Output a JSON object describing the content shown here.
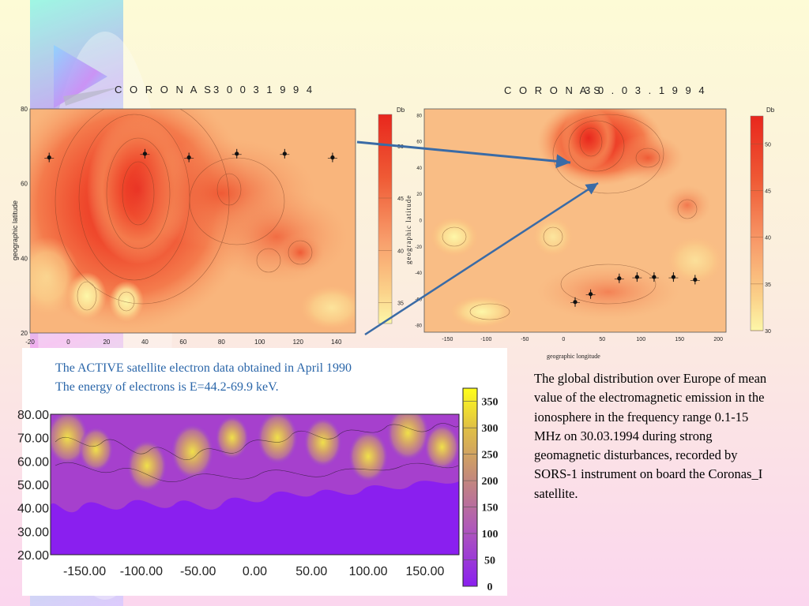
{
  "colors": {
    "map_dark_red": "#e8271d",
    "map_light_yellow": "#fdf7a8",
    "purple_low": "#8a1fef",
    "arrow_blue": "#3a6ba6",
    "caption_blue": "#2a66a9"
  },
  "left_map": {
    "title": "C O R O N A S",
    "date": "3 0  0 3  1 9 9 4",
    "ylabel": "geographic latitude",
    "yticks": [
      "80",
      "60",
      "40",
      "20"
    ],
    "xticks": [
      "-20",
      "0",
      "20",
      "40",
      "60",
      "80",
      "100",
      "120",
      "140"
    ],
    "colorbar_unit": "Db",
    "colorbar_ticks": [
      "50",
      "45",
      "40",
      "35"
    ]
  },
  "right_map": {
    "title": "C O R O N A S",
    "date": "3 0 . 0 3 . 1 9 9 4",
    "ylabel": "geographic latitude",
    "xlabel": "geographic longitude",
    "yticks": [
      "80",
      "60",
      "40",
      "20",
      "0",
      "-20",
      "-40",
      "-60",
      "-80"
    ],
    "xticks": [
      "-150",
      "-100",
      "-50",
      "0",
      "50",
      "100",
      "150",
      "200"
    ],
    "colorbar_unit": "Db",
    "colorbar_ticks": [
      "50",
      "45",
      "40",
      "35",
      "30"
    ]
  },
  "active_map": {
    "caption_line1": "The ACTIVE satellite electron data obtained in April 1990",
    "caption_line2": "The energy of electrons is E=44.2-69.9 keV.",
    "yticks": [
      "80.00",
      "70.00",
      "60.00",
      "50.00",
      "40.00",
      "30.00",
      "20.00"
    ],
    "xticks": [
      "-150.00",
      "-100.00",
      "-50.00",
      "0.00",
      "50.00",
      "100.00",
      "150.00"
    ],
    "colorbar_ticks": [
      "350",
      "300",
      "250",
      "200",
      "150",
      "100",
      "50",
      "0"
    ]
  },
  "description": "The global distribution over Europe of mean value of the electromagnetic emission in the ionosphere in the frequency range 0.1-15 MHz on 30.03.1994 during strong geomagnetic disturbances, recorded by SORS-1 instrument on board the Coronas_I satellite.",
  "chart_data": [
    {
      "type": "heatmap",
      "title": "C O R O N A S",
      "subtitle": "3 0  0 3  1 9 9 4",
      "xlabel": "",
      "ylabel": "geographic latitude",
      "xlim": [
        -20,
        150
      ],
      "ylim": [
        20,
        80
      ],
      "colorbar": {
        "unit": "Db",
        "range": [
          33,
          53
        ],
        "ticks": [
          50,
          45,
          40,
          35
        ]
      },
      "peak": {
        "x": 40,
        "y": 60,
        "value": 52
      },
      "marked_points": [
        {
          "x": -10,
          "y": 67
        },
        {
          "x": 40,
          "y": 68
        },
        {
          "x": 63,
          "y": 67
        },
        {
          "x": 88,
          "y": 68
        },
        {
          "x": 113,
          "y": 68
        },
        {
          "x": 138,
          "y": 67
        }
      ]
    },
    {
      "type": "heatmap",
      "title": "C O R O N A S",
      "subtitle": "3 0 . 0 3 . 1 9 9 4",
      "xlabel": "geographic longitude",
      "ylabel": "geographic latitude",
      "xlim": [
        -180,
        210
      ],
      "ylim": [
        -85,
        85
      ],
      "colorbar": {
        "unit": "Db",
        "range": [
          30,
          53
        ],
        "ticks": [
          50,
          45,
          40,
          35,
          30
        ]
      },
      "peak": {
        "x": 40,
        "y": 65,
        "value": 52
      },
      "marked_points": [
        {
          "x": 15,
          "y": -62
        },
        {
          "x": 35,
          "y": -56
        },
        {
          "x": 72,
          "y": -44
        },
        {
          "x": 95,
          "y": -43
        },
        {
          "x": 117,
          "y": -43
        },
        {
          "x": 142,
          "y": -43
        },
        {
          "x": 170,
          "y": -45
        }
      ]
    },
    {
      "type": "heatmap",
      "title": "",
      "xlabel": "",
      "ylabel": "",
      "xlim": [
        -180,
        180
      ],
      "ylim": [
        20,
        80
      ],
      "colorbar": {
        "range": [
          0,
          375
        ],
        "ticks": [
          350,
          300,
          250,
          200,
          150,
          100,
          50,
          0
        ]
      },
      "hotspots": [
        {
          "x": -165,
          "y": 70,
          "value": 320
        },
        {
          "x": -140,
          "y": 65,
          "value": 240
        },
        {
          "x": -95,
          "y": 58,
          "value": 300
        },
        {
          "x": -55,
          "y": 64,
          "value": 330
        },
        {
          "x": -20,
          "y": 70,
          "value": 230
        },
        {
          "x": 20,
          "y": 70,
          "value": 310
        },
        {
          "x": 60,
          "y": 68,
          "value": 280
        },
        {
          "x": 100,
          "y": 62,
          "value": 300
        },
        {
          "x": 135,
          "y": 72,
          "value": 330
        },
        {
          "x": 165,
          "y": 66,
          "value": 250
        }
      ]
    }
  ]
}
